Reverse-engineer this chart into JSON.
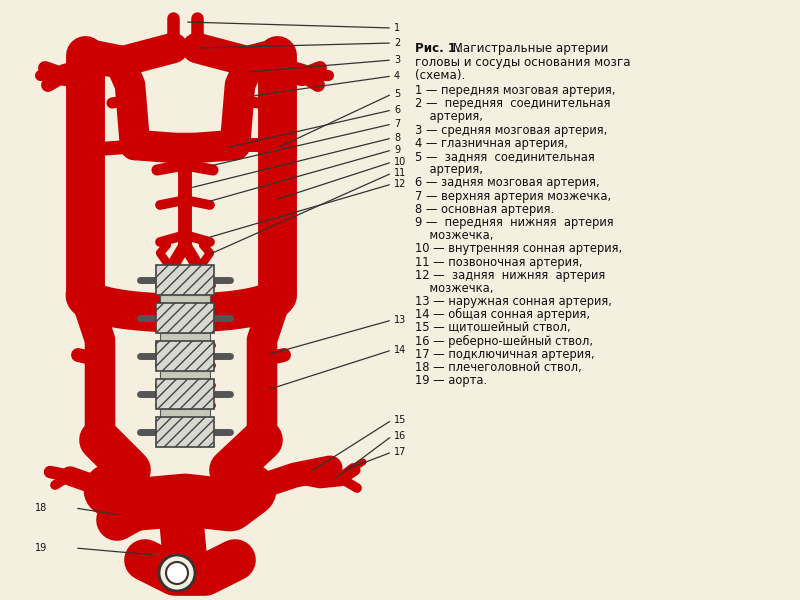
{
  "bg_color": "#f5efe0",
  "artery_color": "#cc0000",
  "line_color": "#222222",
  "spine_fill": "#e0ddd0",
  "title_bold": "Рис. 1.",
  "title_rest": " Магистральные артерии",
  "line2": "головы и сосуды основания мозга",
  "line3": "(схема).",
  "legend": [
    [
      "1",
      "— передняя мозговая артерия,"
    ],
    [
      "2",
      "—  передняя  соединительная"
    ],
    [
      "",
      "артерия,"
    ],
    [
      "3",
      "— средняя мозговая артерия,"
    ],
    [
      "4",
      "— глазничная артерия,"
    ],
    [
      "5",
      "—  задняя  соединительная"
    ],
    [
      "",
      "артерия,"
    ],
    [
      "6",
      "— задняя мозговая артерия,"
    ],
    [
      "7",
      "— верхняя артерия мозжечка,"
    ],
    [
      "8",
      "— основная артерия."
    ],
    [
      "9",
      "—  передняя  нижняя  артерия"
    ],
    [
      "",
      "мозжечка,"
    ],
    [
      "10",
      "— внутренняя сонная артерия,"
    ],
    [
      "11",
      "— позвоночная артерия,"
    ],
    [
      "12",
      "—  задняя  нижняя  артерия"
    ],
    [
      "",
      "мозжечка,"
    ],
    [
      "13",
      "— наружная сонная артерия,"
    ],
    [
      "14",
      "— общая сонная артерия,"
    ],
    [
      "15",
      "— щитошейный ствол,"
    ],
    [
      "16",
      "— реберно-шейный ствол,"
    ],
    [
      "17",
      "— подключичная артерия,"
    ],
    [
      "18",
      "— плечеголовной ствол,"
    ],
    [
      "19",
      "— аорта."
    ]
  ]
}
